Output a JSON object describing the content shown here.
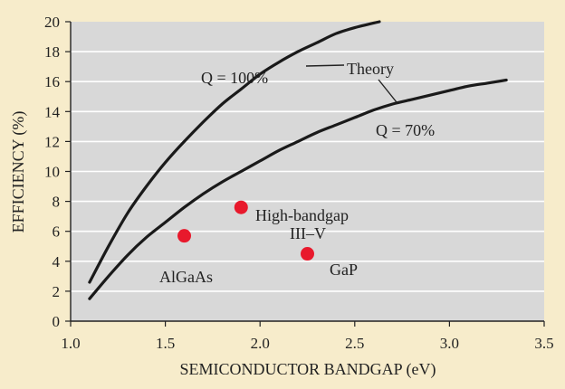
{
  "chart_data": {
    "type": "scatter",
    "xlabel": "SEMICONDUCTOR BANDGAP (eV)",
    "ylabel": "EFFICIENCY (%)",
    "xlim": [
      1.0,
      3.5
    ],
    "ylim": [
      0,
      20
    ],
    "xticks": [
      "1.0",
      "1.5",
      "2.0",
      "2.5",
      "3.0",
      "3.5"
    ],
    "yticks": [
      "0",
      "2",
      "4",
      "6",
      "8",
      "10",
      "12",
      "14",
      "16",
      "18",
      "20"
    ],
    "grid": "horizontal",
    "colors": {
      "background": "#f7eccb",
      "plot_area": "#d8d8d8",
      "grid": "#ffffff",
      "curve": "#1a1a1a",
      "points": "#e8192c"
    },
    "series": [
      {
        "kind": "line",
        "x": [
          1.1,
          1.2,
          1.3,
          1.4,
          1.5,
          1.6,
          1.7,
          1.8,
          1.9,
          2.0,
          2.1,
          2.2,
          2.3,
          2.4,
          2.5,
          2.63
        ],
        "y": [
          2.6,
          5.0,
          7.2,
          9.0,
          10.6,
          12.0,
          13.3,
          14.5,
          15.5,
          16.5,
          17.3,
          18.0,
          18.6,
          19.2,
          19.6,
          20.0
        ]
      },
      {
        "kind": "line",
        "x": [
          1.1,
          1.2,
          1.3,
          1.4,
          1.5,
          1.6,
          1.7,
          1.8,
          1.9,
          2.0,
          2.1,
          2.2,
          2.3,
          2.4,
          2.5,
          2.6,
          2.7,
          2.8,
          2.9,
          3.0,
          3.1,
          3.2,
          3.3
        ],
        "y": [
          1.5,
          3.0,
          4.4,
          5.6,
          6.6,
          7.6,
          8.5,
          9.3,
          10.0,
          10.7,
          11.4,
          12.0,
          12.6,
          13.1,
          13.6,
          14.1,
          14.5,
          14.8,
          15.1,
          15.4,
          15.7,
          15.9,
          16.1
        ]
      },
      {
        "kind": "scatter",
        "points": [
          {
            "x": 1.6,
            "y": 5.7
          },
          {
            "x": 1.9,
            "y": 7.6
          },
          {
            "x": 2.25,
            "y": 4.5
          }
        ]
      }
    ],
    "annotations": {
      "q100": "Q = 100%",
      "q70": "Q = 70%",
      "theory": "Theory",
      "algaas": "AlGaAs",
      "high_bandgap_1": "High-bandgap",
      "high_bandgap_2": "III–V",
      "gap": "GaP"
    }
  }
}
